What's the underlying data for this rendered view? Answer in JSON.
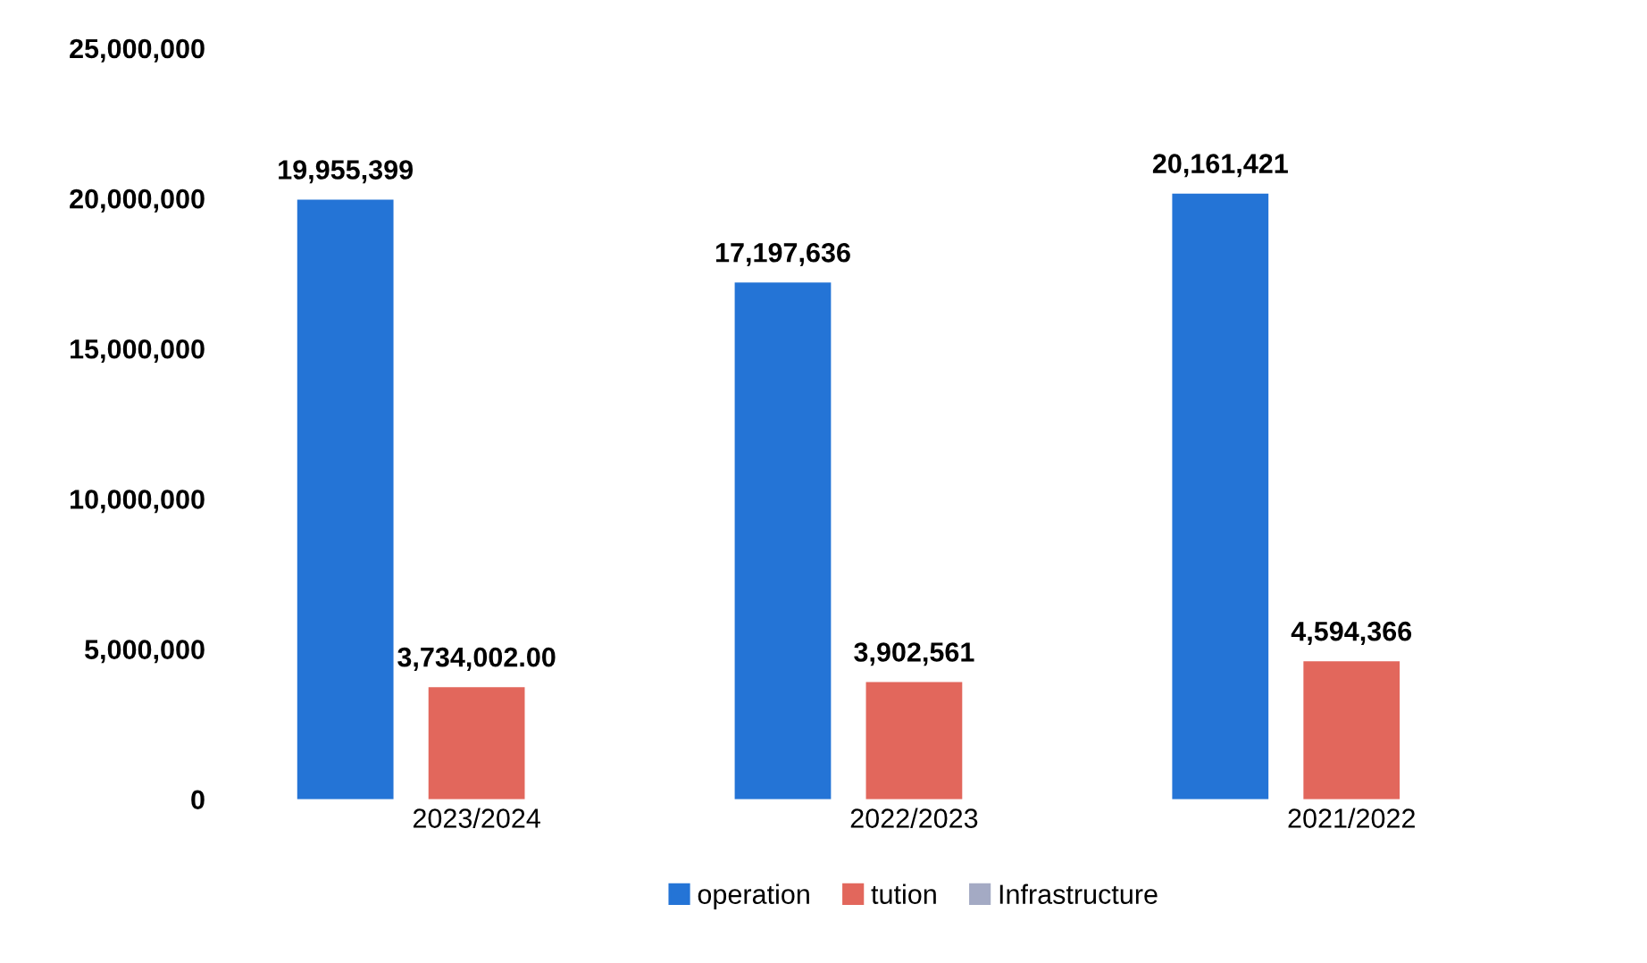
{
  "chart_data": {
    "type": "bar",
    "categories": [
      "2023/2024",
      "2022/2023",
      "2021/2022"
    ],
    "series": [
      {
        "name": "operation",
        "color": "#2474d6",
        "values": [
          19955399,
          17197636,
          20161421
        ],
        "value_labels": [
          "19,955,399",
          "17,197,636",
          "20,161,421"
        ]
      },
      {
        "name": "tution",
        "color": "#e2675c",
        "values": [
          3734002,
          3902561,
          4594366
        ],
        "value_labels": [
          "3,734,002.00",
          "3,902,561",
          "4,594,366"
        ]
      },
      {
        "name": "Infrastructure",
        "color": "#a4aac4",
        "values": [
          null,
          null,
          null
        ]
      }
    ],
    "ylim": [
      0,
      25000000
    ],
    "yticks": [
      0,
      {
        "value": 5000000,
        "label": "5,000,000"
      },
      {
        "value": 10000000,
        "label": "10,000,000"
      },
      {
        "value": 15000000,
        "label": "15,000,000"
      },
      {
        "value": 20000000,
        "label": "20,000,000"
      },
      {
        "value": 25000000,
        "label": "25,000,000"
      }
    ],
    "grid": false,
    "legend": "bottom"
  }
}
